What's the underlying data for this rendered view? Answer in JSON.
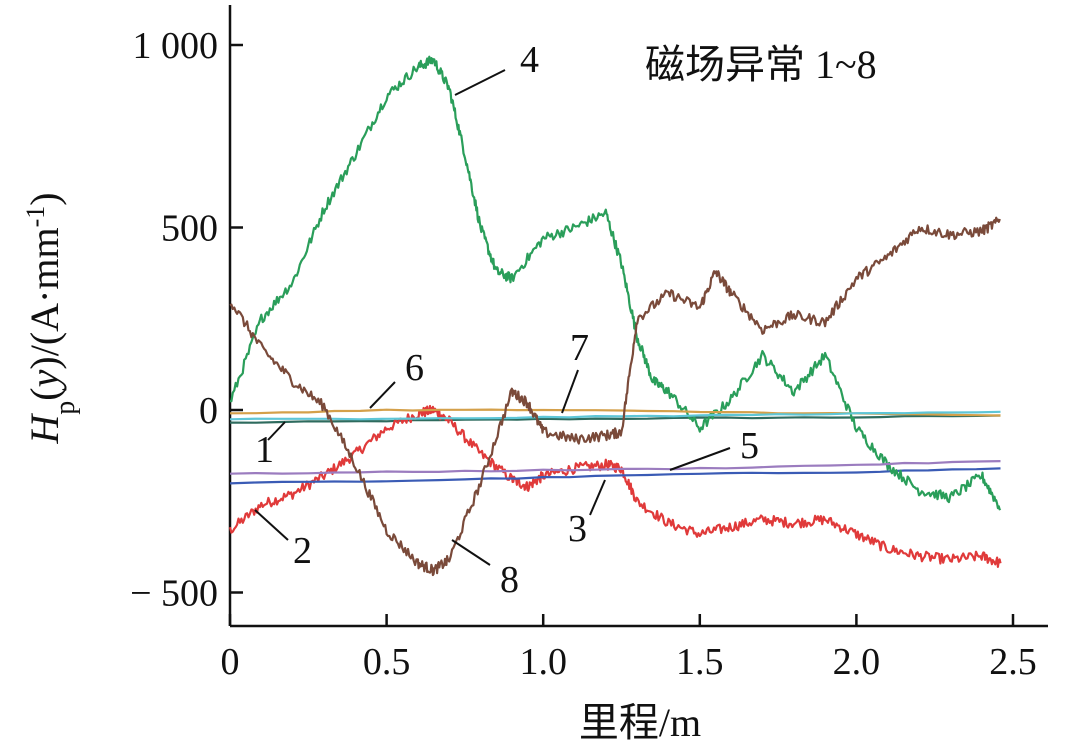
{
  "chart_data": {
    "type": "line",
    "title": "磁场异常 1~8",
    "xlabel": "里程/m",
    "ylabel": "H_p(y)/(A·mm⁻¹)",
    "ylabel_parts": {
      "main": "H",
      "sub": "p",
      "paren": "(",
      "var": "y",
      "rest": ")/(A·mm",
      "sup": "-1",
      "close": ")"
    },
    "xlim": [
      0,
      2.6
    ],
    "ylim": [
      -600,
      1100
    ],
    "x_ticks": [
      0,
      0.5,
      1.0,
      1.5,
      2.0,
      2.5
    ],
    "x_tick_labels": [
      "0",
      "0.5",
      "1.0",
      "1.5",
      "2.0",
      "2.5"
    ],
    "y_ticks": [
      -500,
      0,
      500,
      1000
    ],
    "y_tick_labels": [
      "− 500",
      "0",
      "500",
      "1 000"
    ],
    "grid": false,
    "legend": "none",
    "series": [
      {
        "name": "1",
        "color": "#2e6b5e",
        "x": [
          0,
          0.5,
          1.0,
          1.5,
          2.0,
          2.46
        ],
        "y": [
          -35,
          -30,
          -25,
          -22,
          -20,
          -15
        ]
      },
      {
        "name": "2",
        "color": "#e03a3a",
        "x": [
          0,
          0.1,
          0.2,
          0.3,
          0.4,
          0.5,
          0.6,
          0.65,
          0.7,
          0.8,
          0.9,
          0.95,
          1.0,
          1.1,
          1.2,
          1.25,
          1.3,
          1.4,
          1.5,
          1.6,
          1.7,
          1.8,
          1.9,
          2.0,
          2.1,
          2.2,
          2.3,
          2.4,
          2.46
        ],
        "y": [
          -330,
          -260,
          -230,
          -180,
          -120,
          -50,
          -10,
          0,
          -30,
          -120,
          -190,
          -210,
          -180,
          -160,
          -150,
          -160,
          -250,
          -310,
          -340,
          -320,
          -300,
          -310,
          -300,
          -340,
          -380,
          -400,
          -410,
          -400,
          -420
        ]
      },
      {
        "name": "3",
        "color": "#3a5bb5",
        "x": [
          0,
          0.5,
          1.0,
          1.5,
          2.0,
          2.46
        ],
        "y": [
          -200,
          -195,
          -185,
          -175,
          -170,
          -160
        ]
      },
      {
        "name": "4",
        "color": "#2a9e5a",
        "x": [
          0,
          0.1,
          0.2,
          0.3,
          0.4,
          0.5,
          0.6,
          0.65,
          0.7,
          0.75,
          0.8,
          0.85,
          0.9,
          1.0,
          1.1,
          1.2,
          1.25,
          1.3,
          1.35,
          1.4,
          1.5,
          1.6,
          1.7,
          1.8,
          1.9,
          2.0,
          2.1,
          2.2,
          2.3,
          2.4,
          2.46
        ],
        "y": [
          20,
          250,
          350,
          550,
          700,
          860,
          940,
          960,
          880,
          700,
          500,
          380,
          360,
          470,
          500,
          540,
          400,
          200,
          80,
          50,
          -50,
          30,
          150,
          50,
          150,
          -50,
          -150,
          -220,
          -240,
          -180,
          -270
        ]
      },
      {
        "name": "5",
        "color": "#9b7cbf",
        "x": [
          0,
          0.5,
          1.0,
          1.5,
          2.0,
          2.46
        ],
        "y": [
          -175,
          -170,
          -165,
          -160,
          -150,
          -140
        ]
      },
      {
        "name": "6",
        "color": "#d4a04a",
        "x": [
          0,
          0.5,
          1.0,
          1.5,
          2.0,
          2.46
        ],
        "y": [
          -10,
          0,
          0,
          -5,
          -10,
          -15
        ]
      },
      {
        "name": "7",
        "color": "#5ec6d6",
        "x": [
          0,
          0.5,
          1.0,
          1.5,
          2.0,
          2.46
        ],
        "y": [
          -25,
          -25,
          -20,
          -15,
          -10,
          -5
        ]
      },
      {
        "name": "8",
        "color": "#7a4a3a",
        "x": [
          0,
          0.1,
          0.2,
          0.3,
          0.4,
          0.5,
          0.6,
          0.65,
          0.7,
          0.8,
          0.9,
          0.95,
          1.0,
          1.1,
          1.2,
          1.25,
          1.3,
          1.4,
          1.5,
          1.55,
          1.6,
          1.7,
          1.8,
          1.9,
          2.0,
          2.1,
          2.2,
          2.3,
          2.4,
          2.46
        ],
        "y": [
          300,
          170,
          80,
          10,
          -150,
          -330,
          -420,
          -440,
          -410,
          -200,
          50,
          20,
          -60,
          -80,
          -70,
          -60,
          250,
          320,
          280,
          380,
          320,
          220,
          260,
          240,
          360,
          420,
          500,
          480,
          490,
          520
        ]
      }
    ]
  }
}
